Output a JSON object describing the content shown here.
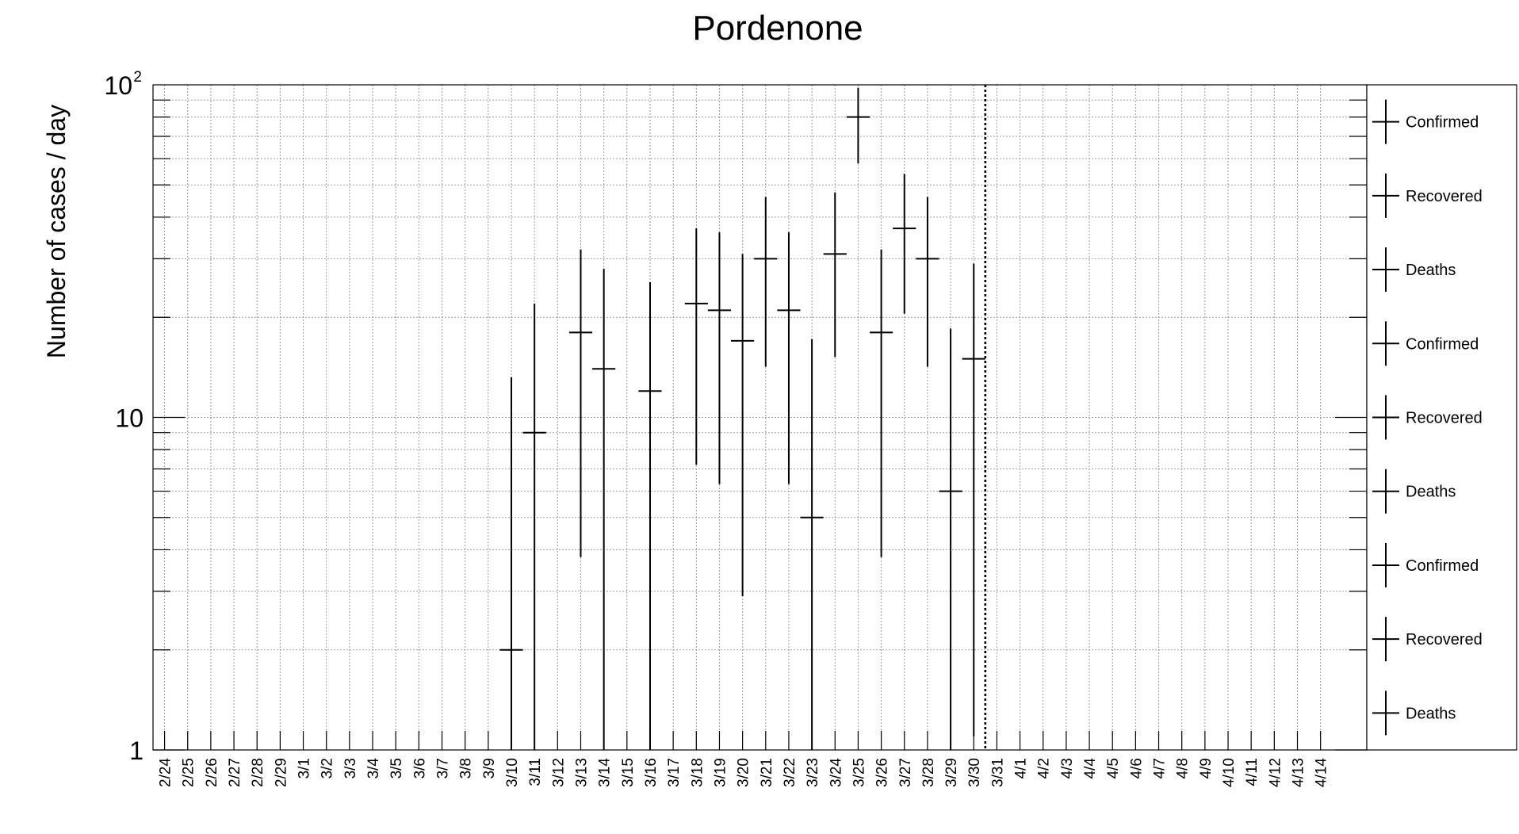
{
  "chart_data": {
    "type": "scatter",
    "title": "Pordenone",
    "xlabel": "",
    "ylabel": "Number of cases / day",
    "y_scale": "log",
    "ylim": [
      1,
      100
    ],
    "y_tick_labels": [
      {
        "value": 1,
        "base": "1",
        "exp": ""
      },
      {
        "value": 10,
        "base": "10",
        "exp": ""
      },
      {
        "value": 100,
        "base": "10",
        "exp": "2"
      }
    ],
    "grid": true,
    "legend_position": "right",
    "categories": [
      "2/24",
      "2/25",
      "2/26",
      "2/27",
      "2/28",
      "2/29",
      "3/1",
      "3/2",
      "3/3",
      "3/4",
      "3/5",
      "3/6",
      "3/7",
      "3/8",
      "3/9",
      "3/10",
      "3/11",
      "3/12",
      "3/13",
      "3/14",
      "3/15",
      "3/16",
      "3/17",
      "3/18",
      "3/19",
      "3/20",
      "3/21",
      "3/22",
      "3/23",
      "3/24",
      "3/25",
      "3/26",
      "3/27",
      "3/28",
      "3/29",
      "3/30",
      "3/31",
      "4/1",
      "4/2",
      "4/3",
      "4/4",
      "4/5",
      "4/6",
      "4/7",
      "4/8",
      "4/9",
      "4/10",
      "4/11",
      "4/12",
      "4/13",
      "4/14"
    ],
    "vertical_marker": "3/30",
    "legend": [
      "Confirmed",
      "Recovered",
      "Deaths",
      "Confirmed",
      "Recovered",
      "Deaths",
      "Confirmed",
      "Recovered",
      "Deaths"
    ],
    "series": [
      {
        "name": "Confirmed",
        "points": [
          {
            "x": "3/10",
            "y": 2,
            "y_low": 1,
            "y_high": 13.2
          },
          {
            "x": "3/11",
            "y": 9,
            "y_low": 1,
            "y_high": 22
          },
          {
            "x": "3/13",
            "y": 18,
            "y_low": 3.8,
            "y_high": 32
          },
          {
            "x": "3/14",
            "y": 14,
            "y_low": 1,
            "y_high": 28
          },
          {
            "x": "3/16",
            "y": 12,
            "y_low": 1,
            "y_high": 25.5
          },
          {
            "x": "3/18",
            "y": 22,
            "y_low": 7.2,
            "y_high": 37
          },
          {
            "x": "3/19",
            "y": 21,
            "y_low": 6.3,
            "y_high": 36
          },
          {
            "x": "3/20",
            "y": 17,
            "y_low": 2.9,
            "y_high": 31
          },
          {
            "x": "3/21",
            "y": 30,
            "y_low": 14.2,
            "y_high": 46
          },
          {
            "x": "3/22",
            "y": 21,
            "y_low": 6.3,
            "y_high": 36
          },
          {
            "x": "3/23",
            "y": 5,
            "y_low": 1,
            "y_high": 17.2
          },
          {
            "x": "3/24",
            "y": 31,
            "y_low": 15.2,
            "y_high": 47.5
          },
          {
            "x": "3/25",
            "y": 80,
            "y_low": 58,
            "y_high": 98
          },
          {
            "x": "3/26",
            "y": 18,
            "y_low": 3.8,
            "y_high": 32
          },
          {
            "x": "3/27",
            "y": 37,
            "y_low": 20.5,
            "y_high": 54
          },
          {
            "x": "3/28",
            "y": 30,
            "y_low": 14.2,
            "y_high": 46
          },
          {
            "x": "3/29",
            "y": 6,
            "y_low": 1,
            "y_high": 18.5
          },
          {
            "x": "3/30",
            "y": 15,
            "y_low": 1.1,
            "y_high": 29
          }
        ]
      }
    ]
  }
}
